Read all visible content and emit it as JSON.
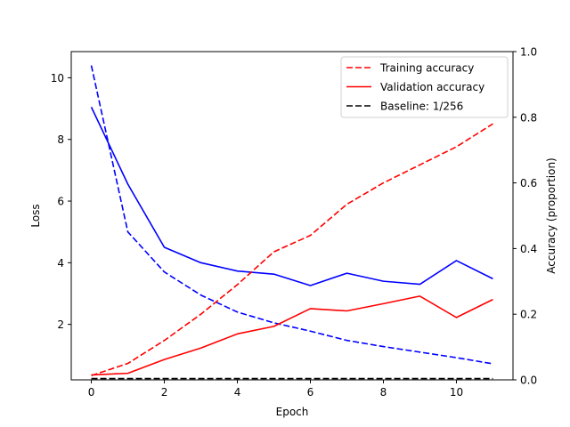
{
  "chart_data": {
    "type": "line",
    "xlabel": "Epoch",
    "ylabel_left": "Loss",
    "ylabel_right": "Accuracy (proportion)",
    "xlim": [
      -0.55,
      11.55
    ],
    "ylim_left": [
      0.2,
      10.85
    ],
    "ylim_right": [
      0.0,
      1.0
    ],
    "x_ticks": [
      0,
      2,
      4,
      6,
      8,
      10
    ],
    "y_left_ticks": [
      2,
      4,
      6,
      8,
      10
    ],
    "y_right_ticks": [
      0.0,
      0.2,
      0.4,
      0.6,
      0.8,
      1.0
    ],
    "x": [
      0,
      1,
      2,
      3,
      4,
      5,
      6,
      7,
      8,
      9,
      10,
      11
    ],
    "grid": false,
    "legend_position": "upper right",
    "legend": [
      {
        "label": "Training accuracy",
        "color": "#ff0000",
        "dash": "dashed"
      },
      {
        "label": "Validation accuracy",
        "color": "#ff0000",
        "dash": "solid"
      },
      {
        "label": "Baseline: 1/256",
        "color": "#000000",
        "dash": "dashed"
      }
    ],
    "series": [
      {
        "axis": "left",
        "color": "#0000ff",
        "dash": "dashed",
        "values": [
          10.4,
          5.0,
          3.7,
          2.95,
          2.4,
          2.05,
          1.78,
          1.48,
          1.28,
          1.1,
          0.92,
          0.72
        ]
      },
      {
        "axis": "left",
        "color": "#0000ff",
        "dash": "solid",
        "values": [
          9.05,
          6.55,
          4.5,
          4.0,
          3.73,
          3.63,
          3.26,
          3.66,
          3.4,
          3.3,
          4.07,
          3.48
        ]
      },
      {
        "axis": "right",
        "color": "#ff0000",
        "dash": "dashed",
        "values": [
          0.013,
          0.05,
          0.12,
          0.2,
          0.29,
          0.39,
          0.44,
          0.535,
          0.6,
          0.655,
          0.71,
          0.78
        ]
      },
      {
        "axis": "right",
        "color": "#ff0000",
        "dash": "solid",
        "values": [
          0.015,
          0.02,
          0.062,
          0.097,
          0.14,
          0.163,
          0.217,
          0.21,
          0.232,
          0.255,
          0.19,
          0.245
        ]
      },
      {
        "axis": "right",
        "color": "#000000",
        "dash": "dashed",
        "values": [
          0.0039,
          0.0039,
          0.0039,
          0.0039,
          0.0039,
          0.0039,
          0.0039,
          0.0039,
          0.0039,
          0.0039,
          0.0039,
          0.0039
        ]
      }
    ]
  }
}
